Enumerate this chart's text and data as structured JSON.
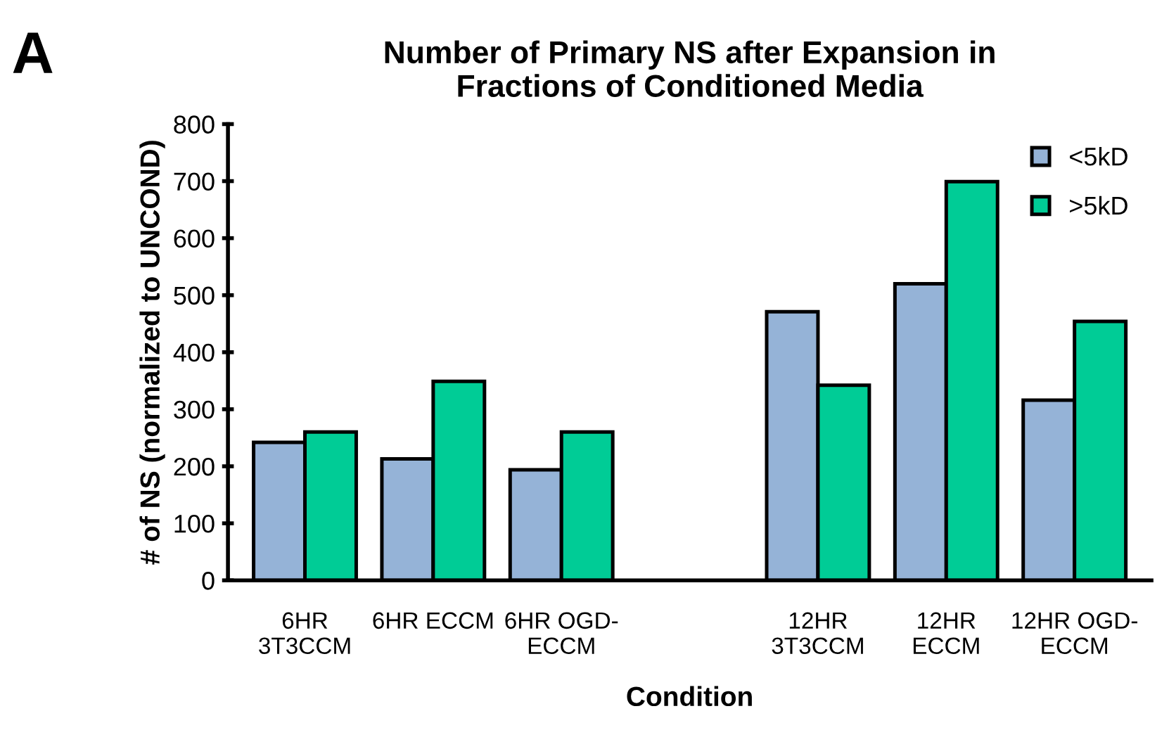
{
  "chart_data": {
    "type": "bar",
    "title": "Number of Primary NS after Expansion in\nFractions of Conditioned Media",
    "xlabel": "Condition",
    "ylabel": "# of NS (normalized to UNCOND)",
    "categories": [
      "6HR\n3T3CCM",
      "6HR ECCM",
      "6HR OGD-\nECCM",
      null,
      "12HR\n3T3CCM",
      "12HR\nECCM",
      "12HR OGD-\nECCM"
    ],
    "series": [
      {
        "name": "<5kD",
        "color": "#95b3d7",
        "values": [
          242,
          213,
          194,
          null,
          471,
          520,
          316
        ]
      },
      {
        "name": ">5kD",
        "color": "#00cc96",
        "values": [
          260,
          349,
          260,
          null,
          342,
          699,
          454
        ]
      }
    ],
    "ylim": [
      0,
      800
    ],
    "yticks": [
      0,
      100,
      200,
      300,
      400,
      500,
      600,
      700,
      800
    ],
    "grid": false,
    "legend": "top right",
    "annotations": [
      "A"
    ]
  }
}
